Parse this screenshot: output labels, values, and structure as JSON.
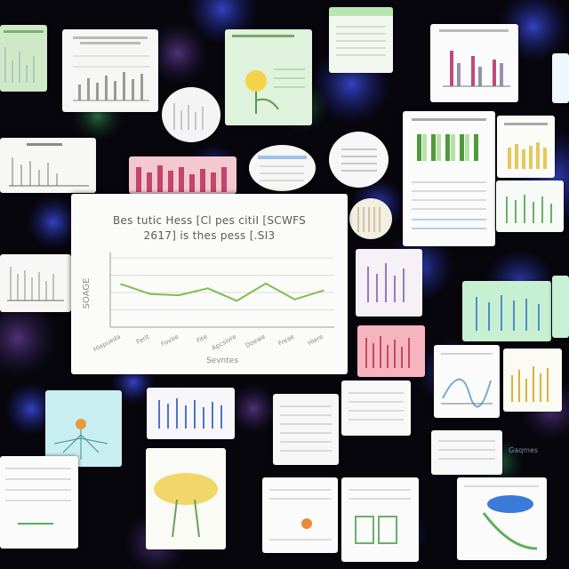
{
  "collage": {
    "main_chart": {
      "title_line1": "Bes tutic Hess [Cl pes citiI [SCWFS",
      "title_line2": "2617] is thes pess [.SI3",
      "y_axis_label": "SOAGE",
      "x_tick_labels": [
        "Hlepueda",
        "Ferit",
        "Fovoe",
        "Fite",
        "Apcsiore",
        "Doewe",
        "Freae",
        "Hlere"
      ],
      "x_axis_label": "Sevntes",
      "line_color": "#7cc04f"
    },
    "bottom_right_label": "Gaqmes"
  },
  "chart_data": {
    "type": "line",
    "title": "Bes tutic Hess [Cl pes citiI [SCWFS 2617] is thes pess [.SI3",
    "xlabel": "Sevntes",
    "ylabel": "SOAGE",
    "categories": [
      "Hlepueda",
      "Ferit",
      "Fovoe",
      "Fite",
      "Apcsiore",
      "Doewe",
      "Freae",
      "Hlere"
    ],
    "values": [
      62,
      48,
      46,
      56,
      38,
      63,
      40,
      53
    ],
    "ylim": [
      0,
      100
    ],
    "grid": true
  }
}
